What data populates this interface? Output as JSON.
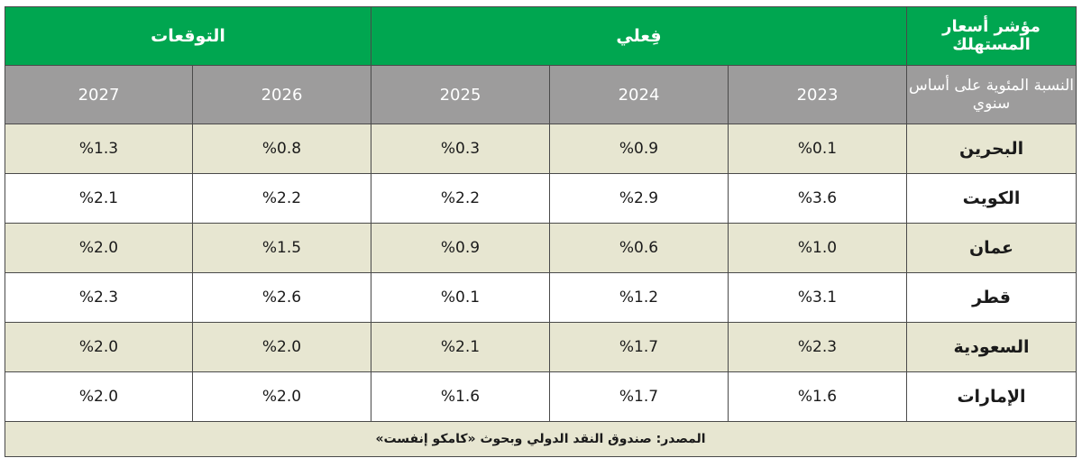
{
  "header": {
    "corner_title": "مؤشر أسعار المستهلك",
    "corner_subtitle": "النسبة المئوية على أساس سنوي",
    "actual_label": "فِعلي",
    "forecast_label": "التوقعات",
    "years": [
      "2023",
      "2024",
      "2025",
      "2026",
      "2027"
    ]
  },
  "rows": [
    {
      "country": "البحرين",
      "values": [
        "%0.1",
        "%0.9",
        "%0.3",
        "%0.8",
        "%1.3"
      ]
    },
    {
      "country": "الكويت",
      "values": [
        "%3.6",
        "%2.9",
        "%2.2",
        "%2.2",
        "%2.1"
      ]
    },
    {
      "country": "عمان",
      "values": [
        "%1.0",
        "%0.6",
        "%0.9",
        "%1.5",
        "%2.0"
      ]
    },
    {
      "country": "قطر",
      "values": [
        "%3.1",
        "%1.2",
        "%0.1",
        "%2.6",
        "%2.3"
      ]
    },
    {
      "country": "السعودية",
      "values": [
        "%2.3",
        "%1.7",
        "%2.1",
        "%2.0",
        "%2.0"
      ]
    },
    {
      "country": "الإمارات",
      "values": [
        "%1.6",
        "%1.7",
        "%1.6",
        "%2.0",
        "%2.0"
      ]
    }
  ],
  "source": "المصدر: صندوق النقد الدولي وبحوث «كامكو إنفست»",
  "colors": {
    "header_green": "#00a650",
    "header_gray": "#9d9c9c",
    "row_band": "#e7e6d1",
    "border": "#4a4a4a"
  }
}
